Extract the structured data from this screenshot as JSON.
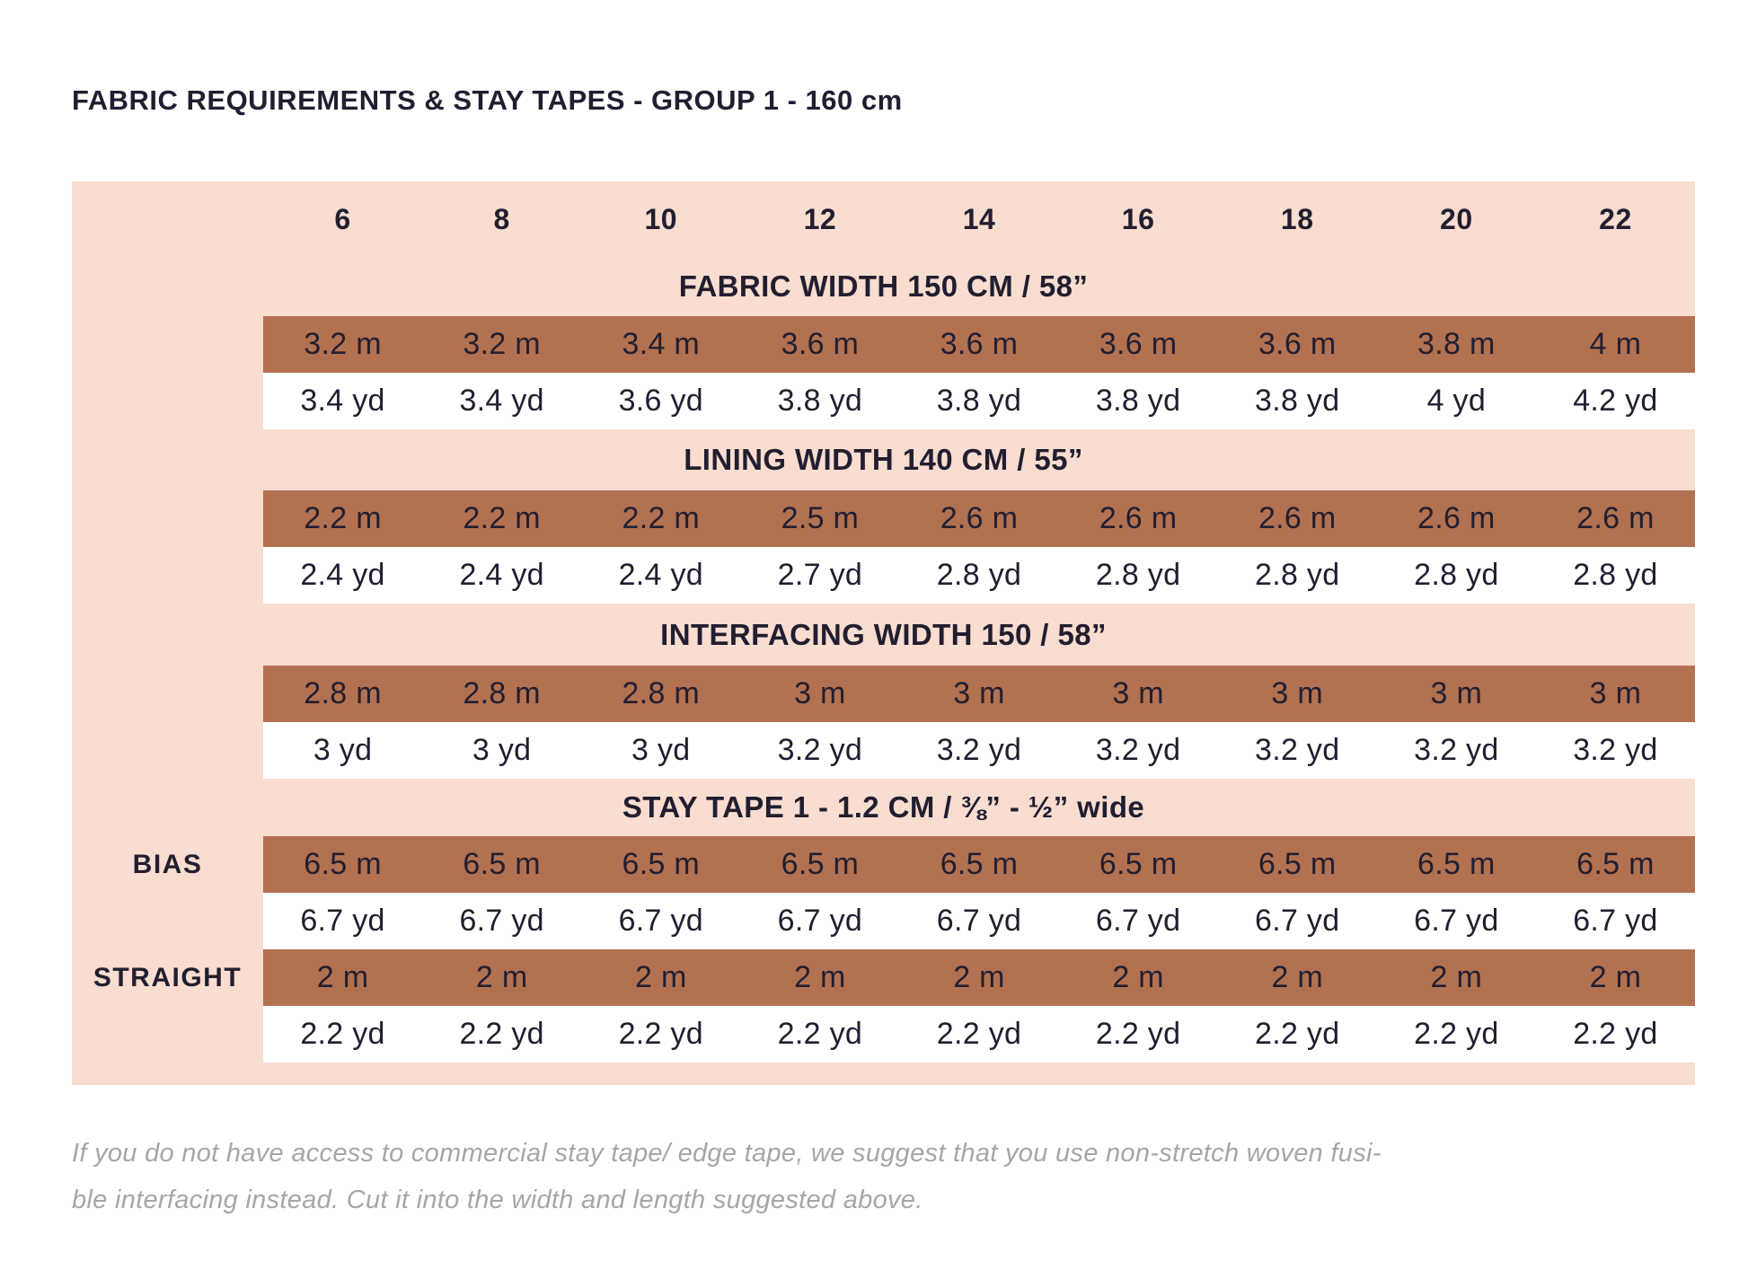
{
  "title": "FABRIC REQUIREMENTS & STAY TAPES - GROUP 1 - 160 cm",
  "colors": {
    "peach": "#f8ddd0",
    "brown": "#b27150",
    "text_dark": "#221e30",
    "footer_gray": "#a6a6a6",
    "page_bg": "#ffffff"
  },
  "table": {
    "sizes": [
      "6",
      "8",
      "10",
      "12",
      "14",
      "16",
      "18",
      "20",
      "22"
    ],
    "sections": [
      {
        "header": "FABRIC WIDTH 150 CM / 58”",
        "rows": [
          {
            "label": "",
            "style": "brown",
            "values": [
              "3.2 m",
              "3.2 m",
              "3.4 m",
              "3.6 m",
              "3.6 m",
              "3.6 m",
              "3.6 m",
              "3.8 m",
              "4 m"
            ]
          },
          {
            "label": "",
            "style": "white",
            "values": [
              "3.4 yd",
              "3.4 yd",
              "3.6 yd",
              "3.8 yd",
              "3.8 yd",
              "3.8 yd",
              "3.8 yd",
              "4 yd",
              "4.2 yd"
            ]
          }
        ]
      },
      {
        "header": "LINING WIDTH 140 CM / 55”",
        "rows": [
          {
            "label": "",
            "style": "brown",
            "values": [
              "2.2 m",
              "2.2 m",
              "2.2 m",
              "2.5 m",
              "2.6 m",
              "2.6 m",
              "2.6 m",
              "2.6 m",
              "2.6 m"
            ]
          },
          {
            "label": "",
            "style": "white",
            "values": [
              "2.4 yd",
              "2.4 yd",
              "2.4 yd",
              "2.7 yd",
              "2.8 yd",
              "2.8 yd",
              "2.8 yd",
              "2.8 yd",
              "2.8 yd"
            ]
          }
        ]
      },
      {
        "header": "INTERFACING WIDTH 150 / 58”",
        "rows": [
          {
            "label": "",
            "style": "brown",
            "values": [
              "2.8 m",
              "2.8 m",
              "2.8 m",
              "3 m",
              "3 m",
              "3 m",
              "3 m",
              "3 m",
              "3 m"
            ]
          },
          {
            "label": "",
            "style": "white",
            "values": [
              "3 yd",
              "3 yd",
              "3 yd",
              "3.2 yd",
              "3.2 yd",
              "3.2 yd",
              "3.2 yd",
              "3.2 yd",
              "3.2 yd"
            ]
          }
        ]
      },
      {
        "header": "STAY TAPE 1 - 1.2 CM / ⅜” - ½” wide",
        "rows": [
          {
            "label": "BIAS",
            "style": "brown",
            "values": [
              "6.5 m",
              "6.5 m",
              "6.5 m",
              "6.5 m",
              "6.5 m",
              "6.5 m",
              "6.5 m",
              "6.5 m",
              "6.5 m"
            ]
          },
          {
            "label": "",
            "style": "white",
            "values": [
              "6.7 yd",
              "6.7 yd",
              "6.7 yd",
              "6.7 yd",
              "6.7 yd",
              "6.7 yd",
              "6.7 yd",
              "6.7 yd",
              "6.7 yd"
            ]
          },
          {
            "label": "STRAIGHT",
            "style": "brown",
            "values": [
              "2 m",
              "2 m",
              "2 m",
              "2 m",
              "2 m",
              "2 m",
              "2 m",
              "2 m",
              "2 m"
            ]
          },
          {
            "label": "",
            "style": "white",
            "values": [
              "2.2 yd",
              "2.2 yd",
              "2.2 yd",
              "2.2 yd",
              "2.2 yd",
              "2.2 yd",
              "2.2 yd",
              "2.2 yd",
              "2.2 yd"
            ]
          }
        ]
      }
    ]
  },
  "footer": {
    "lines": [
      "If you do not have access to commercial stay tape/ edge tape, we suggest that you use non-stretch woven fusi-",
      "ble interfacing instead. Cut it into the width and length suggested above."
    ]
  }
}
